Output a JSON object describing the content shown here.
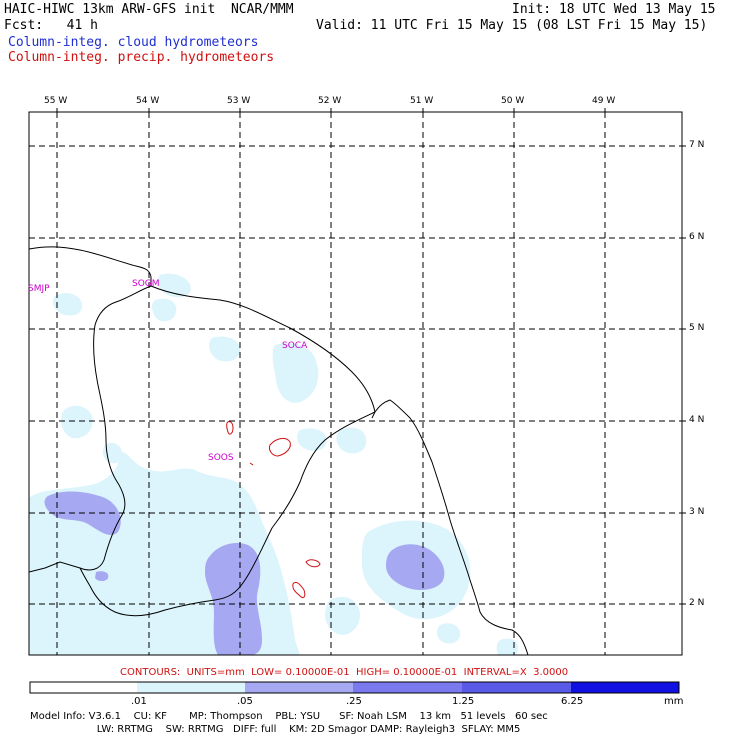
{
  "header": {
    "title": "HAIC-HIWC 13km ARW-GFS init  NCAR/MMM",
    "init": "Init: 18 UTC Wed 13 May 15",
    "fcst": "Fcst:   41 h",
    "valid": "Valid: 11 UTC Fri 15 May 15 (08 LST Fri 15 May 15)",
    "field1": "Column-integ. cloud hydrometeors",
    "field2": "Column-integ. precip. hydrometeors"
  },
  "colors": {
    "cloud_label": "#1f2fd0",
    "precip_label": "#d01010",
    "coast": "#000000",
    "station": "#cc00cc",
    "shade_light": "#dcf4fb",
    "shade_mid": "#a6a8f2",
    "shade_dark": "#5a5ae8",
    "shade_darkest": "#1010e0"
  },
  "map": {
    "lon_labels": [
      "55 W",
      "54 W",
      "53 W",
      "52 W",
      "51 W",
      "50 W",
      "49 W"
    ],
    "lat_labels": [
      "7 N",
      "6 N",
      "5 N",
      "4 N",
      "3 N",
      "2 N"
    ],
    "stations": [
      "SMJP",
      "SOGM",
      "SOCA",
      "SOOS"
    ]
  },
  "contour_info": "CONTOURS:  UNITS=mm  LOW= 0.10000E-01  HIGH= 0.10000E-01  INTERVAL=X  3.0000",
  "colorbar": {
    "ticks": [
      ".01",
      ".05",
      ".25",
      "1.25",
      "6.25"
    ],
    "unit": "mm"
  },
  "footer": {
    "line1": "Model Info: V3.6.1    CU: KF       MP: Thompson    PBL: YSU      SF: Noah LSM    13 km   51 levels   60 sec",
    "line2": "                     LW: RRTMG    SW: RRTMG   DIFF: full    KM: 2D Smagor DAMP: Rayleigh3  SFLAY: MM5"
  }
}
